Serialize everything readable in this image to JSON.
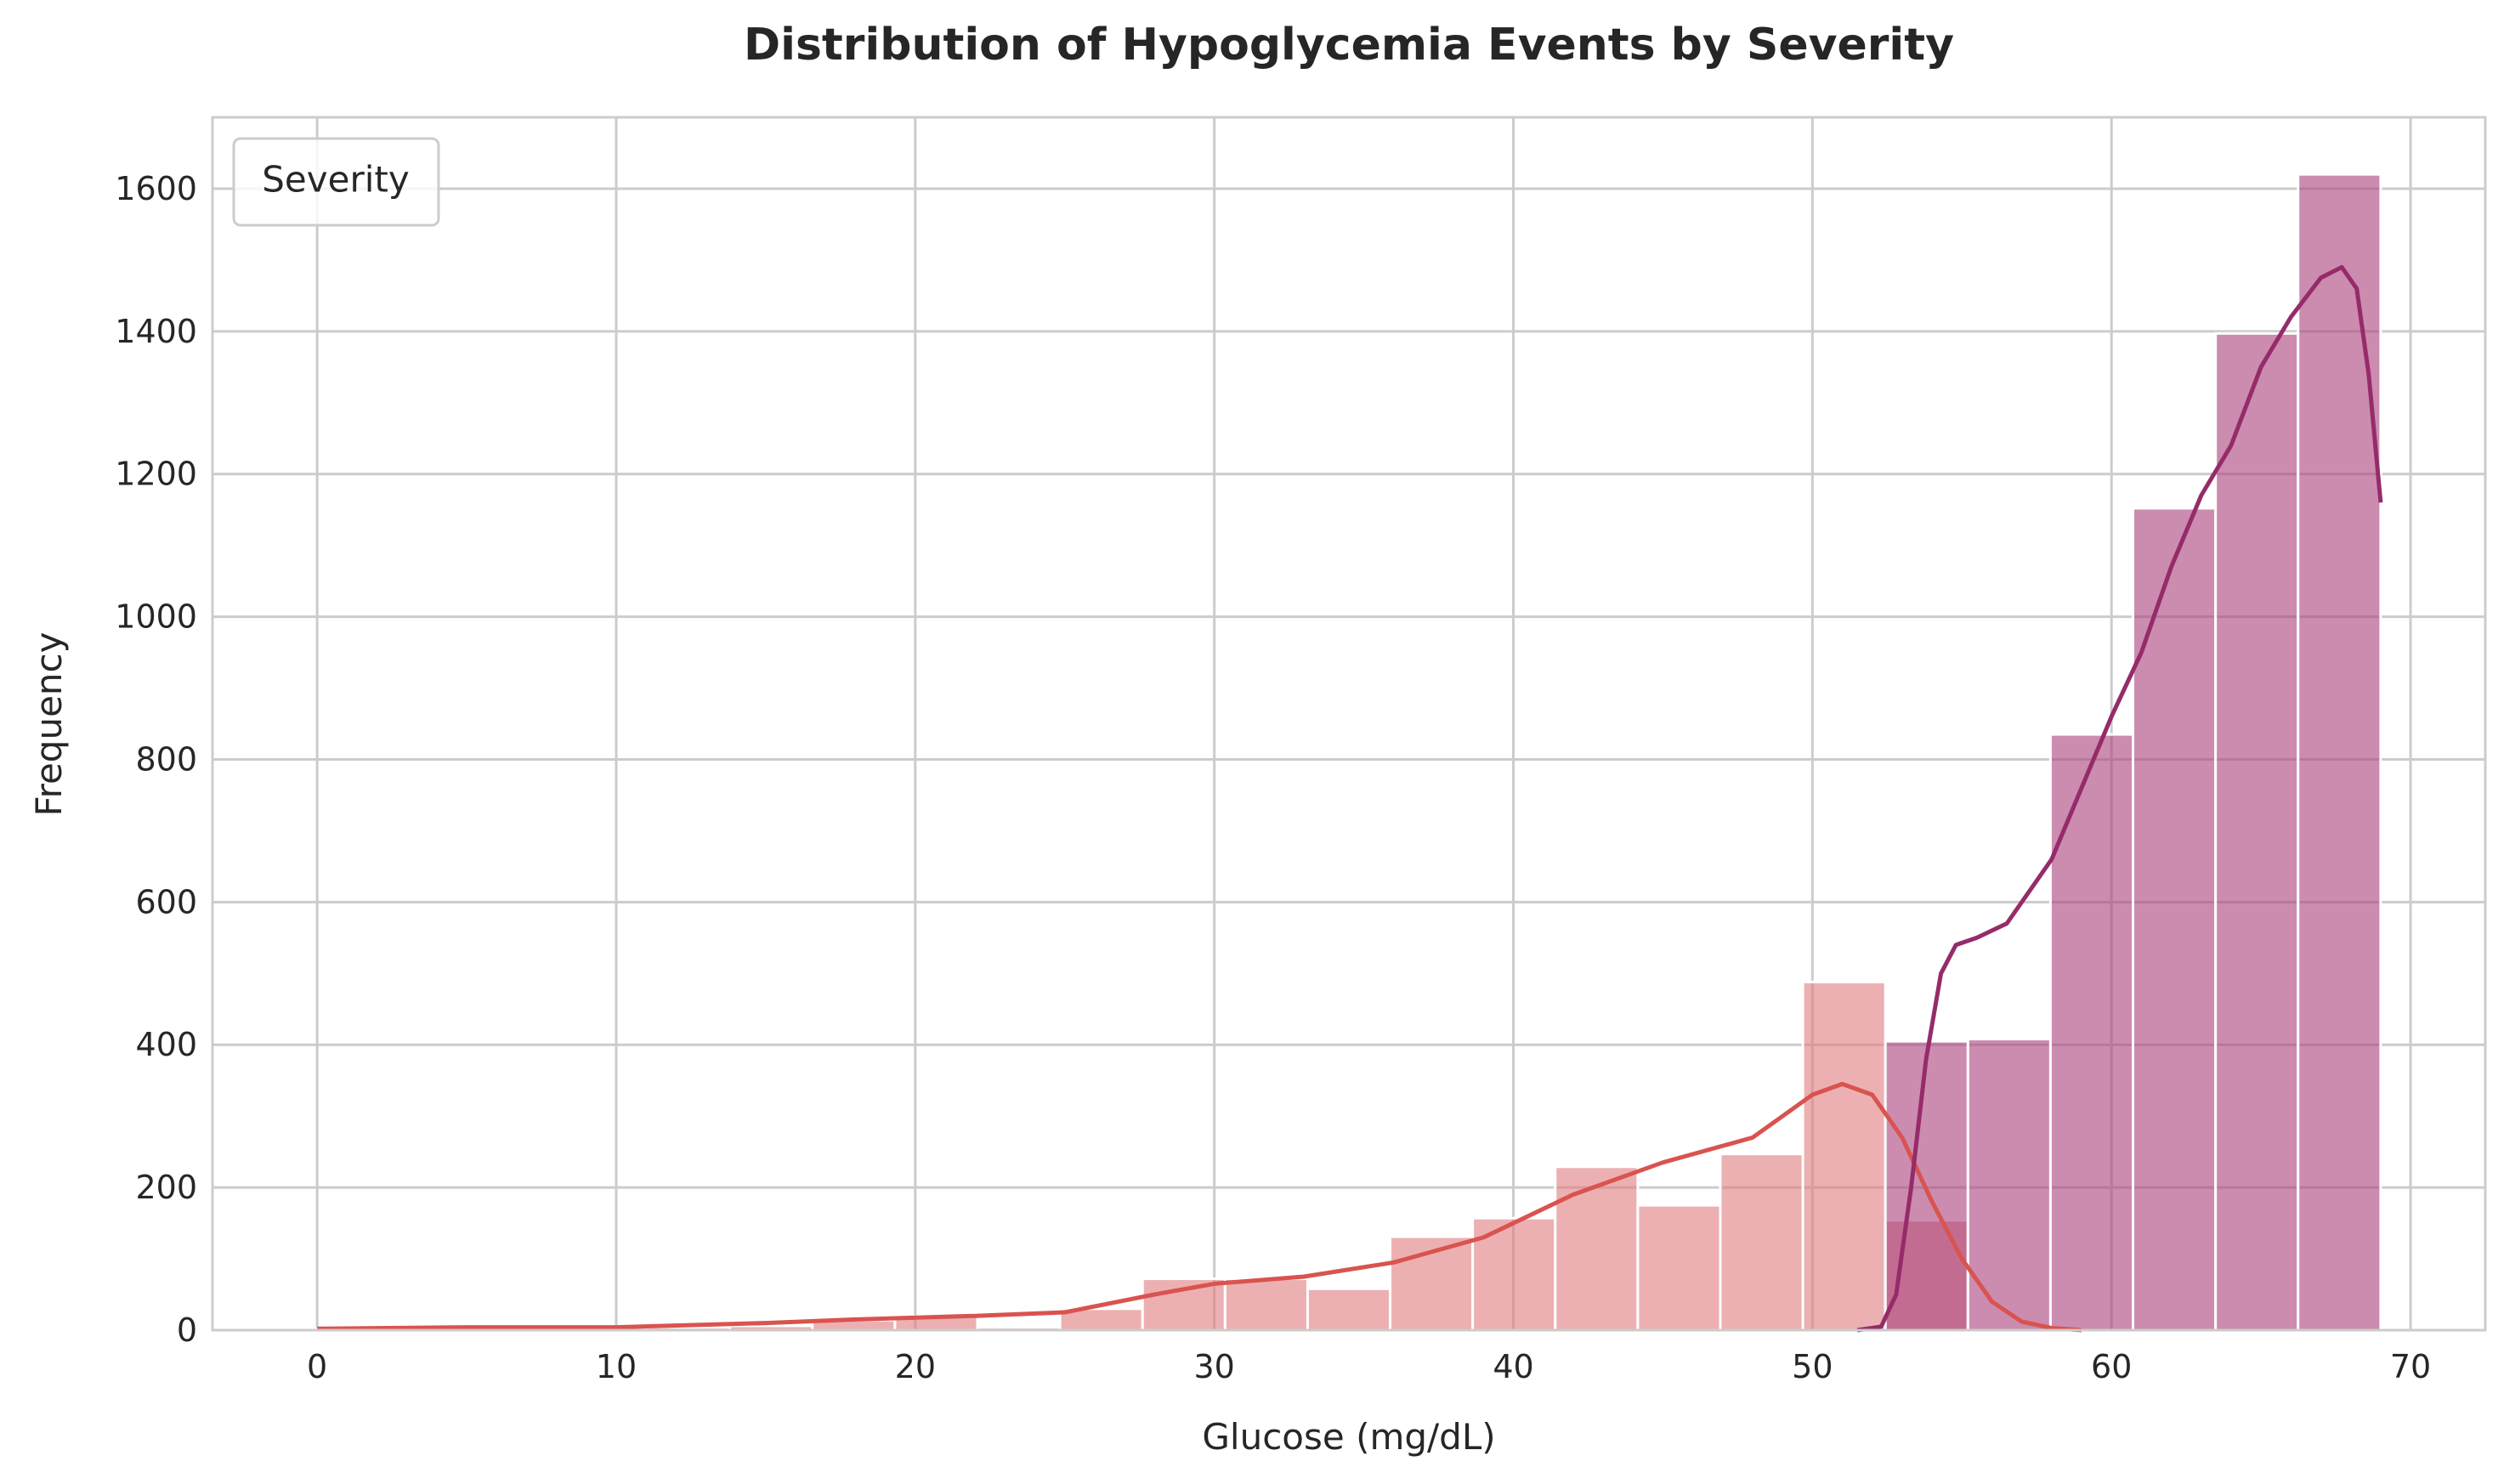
{
  "chart_data": {
    "type": "bar",
    "title": "Distribution of Hypoglycemia Events by Severity",
    "xlabel": "Glucose (mg/dL)",
    "ylabel": "Frequency",
    "xlim": [
      -3.5,
      72.5
    ],
    "ylim": [
      0,
      1700
    ],
    "xticks": [
      0,
      10,
      20,
      30,
      40,
      50,
      60,
      70
    ],
    "yticks": [
      0,
      200,
      400,
      600,
      800,
      1000,
      1200,
      1400,
      1600
    ],
    "grid": true,
    "legend": {
      "title": "Severity",
      "position": "top-left",
      "entries": []
    },
    "colors": {
      "series_a_bar": "#e07b7f",
      "series_a_line": "#d9534f",
      "series_b_bar": "#a8407c",
      "series_b_line": "#962b6a",
      "grid": "#cccccc",
      "background": "#ffffff"
    },
    "series": [
      {
        "bin_edges": [
          0,
          2.76,
          5.52,
          8.28,
          11.04,
          13.8,
          16.56,
          19.32,
          22.08,
          24.84,
          27.6,
          30.36,
          33.12,
          35.88,
          38.64,
          41.4,
          44.16,
          46.92,
          49.68,
          52.44,
          55.2
        ],
        "counts": [
          2,
          1,
          2,
          2,
          4,
          6,
          14,
          19,
          4,
          30,
          72,
          72,
          58,
          131,
          157,
          229,
          175,
          247,
          488,
          154
        ],
        "kde": [
          [
            0,
            2
          ],
          [
            5,
            4
          ],
          [
            10,
            4
          ],
          [
            15,
            10
          ],
          [
            18,
            15
          ],
          [
            22,
            20
          ],
          [
            25,
            25
          ],
          [
            28,
            50
          ],
          [
            30,
            65
          ],
          [
            33,
            75
          ],
          [
            36,
            95
          ],
          [
            39,
            130
          ],
          [
            42,
            190
          ],
          [
            45,
            235
          ],
          [
            48,
            270
          ],
          [
            50,
            330
          ],
          [
            51,
            345
          ],
          [
            52,
            330
          ],
          [
            53,
            270
          ],
          [
            54,
            180
          ],
          [
            55,
            100
          ],
          [
            56,
            40
          ],
          [
            57,
            12
          ],
          [
            58,
            3
          ],
          [
            59,
            0
          ]
        ]
      },
      {
        "bin_edges": [
          52.44,
          55.2,
          57.96,
          60.72,
          63.48,
          66.24,
          69.0
        ],
        "counts": [
          405,
          408,
          835,
          1152,
          1397,
          1620
        ],
        "kde": [
          [
            51.5,
            0
          ],
          [
            52.3,
            5
          ],
          [
            52.8,
            50
          ],
          [
            53.3,
            200
          ],
          [
            53.8,
            380
          ],
          [
            54.3,
            500
          ],
          [
            54.8,
            540
          ],
          [
            55.5,
            550
          ],
          [
            56.5,
            570
          ],
          [
            58,
            660
          ],
          [
            59,
            760
          ],
          [
            60,
            860
          ],
          [
            61,
            950
          ],
          [
            62,
            1070
          ],
          [
            63,
            1170
          ],
          [
            64,
            1240
          ],
          [
            65,
            1350
          ],
          [
            66,
            1420
          ],
          [
            67,
            1475
          ],
          [
            67.7,
            1490
          ],
          [
            68.2,
            1460
          ],
          [
            68.6,
            1340
          ],
          [
            69,
            1160
          ]
        ]
      }
    ]
  }
}
